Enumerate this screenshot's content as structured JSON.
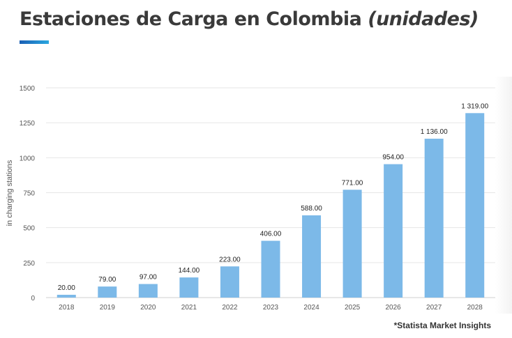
{
  "header": {
    "title": "Estaciones de Carga en Colombia",
    "title_italic": "(unidades)"
  },
  "source": {
    "asterisk": "*",
    "text": "Statista Market Insights"
  },
  "colors": {
    "bar": "#7cb9e8",
    "title": "#3a3a3a",
    "accent_start": "#1a5fb4",
    "accent_end": "#2aa7e0"
  },
  "chart_data": {
    "type": "bar",
    "title": "Estaciones de Carga en Colombia (unidades)",
    "xlabel": "",
    "ylabel": "in charging stations",
    "categories": [
      "2018",
      "2019",
      "2020",
      "2021",
      "2022",
      "2023",
      "2024",
      "2025",
      "2026",
      "2027",
      "2028"
    ],
    "values": [
      20,
      79,
      97,
      144,
      223,
      406,
      588,
      771,
      954,
      1136,
      1319
    ],
    "data_labels": [
      "20.00",
      "79.00",
      "97.00",
      "144.00",
      "223.00",
      "406.00",
      "588.00",
      "771.00",
      "954.00",
      "1 136.00",
      "1 319.00"
    ],
    "ylim": [
      0,
      1500
    ],
    "yticks": [
      0,
      250,
      500,
      750,
      1000,
      1250,
      1500
    ],
    "ytick_labels": [
      "0",
      "250",
      "500",
      "750",
      "1000",
      "1250",
      "1500"
    ],
    "grid": true,
    "legend": "none"
  }
}
